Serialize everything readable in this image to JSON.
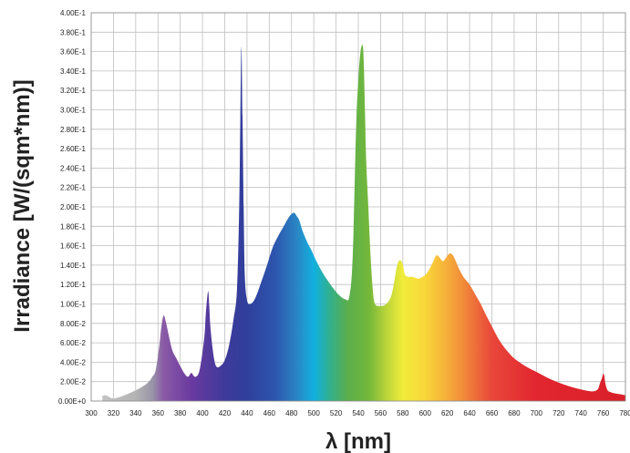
{
  "chart_data": {
    "type": "area",
    "title": "",
    "xlabel": "λ [nm]",
    "ylabel": "Irradiance [W/(sqm*nm)]",
    "xlim": [
      300,
      780
    ],
    "ylim": [
      0,
      0.4
    ],
    "grid": true,
    "x_ticks": [
      "300",
      "320",
      "340",
      "360",
      "380",
      "400",
      "420",
      "440",
      "460",
      "480",
      "500",
      "520",
      "540",
      "560",
      "580",
      "600",
      "620",
      "640",
      "660",
      "680",
      "700",
      "720",
      "740",
      "760",
      "780"
    ],
    "y_ticks": [
      "0.00E+0",
      "2.00E-2",
      "4.00E-2",
      "6.00E-2",
      "8.00E-2",
      "1.00E-1",
      "1.20E-1",
      "1.40E-1",
      "1.60E-1",
      "1.80E-1",
      "2.00E-1",
      "2.20E-1",
      "2.40E-1",
      "2.60E-1",
      "2.80E-1",
      "3.00E-1",
      "3.20E-1",
      "3.40E-1",
      "3.60E-1",
      "3.80E-1",
      "4.00E-1"
    ],
    "series": [
      {
        "x": [
          310,
          312,
          315,
          318,
          322,
          330,
          340,
          350,
          355,
          358,
          361,
          363,
          365,
          367,
          370,
          373,
          377,
          380,
          384,
          387,
          390,
          392,
          394,
          397,
          400,
          402,
          403,
          405,
          406,
          407,
          409,
          411,
          413,
          416,
          420,
          424,
          428,
          431,
          433,
          434,
          435,
          436,
          437,
          438,
          440,
          443,
          447,
          452,
          458,
          463,
          468,
          473,
          478,
          482,
          485,
          487,
          490,
          494,
          498,
          502,
          508,
          515,
          522,
          528,
          532,
          535,
          538,
          540,
          542,
          544,
          545,
          546,
          547,
          549,
          551,
          553,
          555,
          560,
          565,
          570,
          575,
          578,
          580,
          582,
          585,
          588,
          591,
          594,
          598,
          601,
          604,
          607,
          610,
          613,
          616,
          619,
          622,
          625,
          628,
          631,
          635,
          640,
          645,
          650,
          655,
          660,
          665,
          670,
          675,
          680,
          690,
          700,
          710,
          720,
          730,
          740,
          750,
          755,
          757,
          759,
          760,
          761,
          762,
          764,
          767,
          770,
          775,
          780
        ],
        "y": [
          0.005,
          0.006,
          0.005,
          0.003,
          0.003,
          0.006,
          0.011,
          0.018,
          0.025,
          0.032,
          0.055,
          0.076,
          0.088,
          0.082,
          0.066,
          0.052,
          0.043,
          0.036,
          0.028,
          0.025,
          0.029,
          0.026,
          0.025,
          0.03,
          0.05,
          0.07,
          0.09,
          0.113,
          0.1,
          0.078,
          0.055,
          0.04,
          0.035,
          0.036,
          0.042,
          0.058,
          0.085,
          0.115,
          0.2,
          0.29,
          0.365,
          0.29,
          0.2,
          0.13,
          0.104,
          0.1,
          0.105,
          0.12,
          0.14,
          0.158,
          0.17,
          0.18,
          0.19,
          0.194,
          0.19,
          0.186,
          0.175,
          0.164,
          0.155,
          0.145,
          0.132,
          0.12,
          0.11,
          0.105,
          0.108,
          0.15,
          0.28,
          0.33,
          0.36,
          0.366,
          0.345,
          0.3,
          0.25,
          0.2,
          0.15,
          0.115,
          0.1,
          0.098,
          0.1,
          0.11,
          0.14,
          0.145,
          0.14,
          0.13,
          0.128,
          0.128,
          0.127,
          0.126,
          0.128,
          0.131,
          0.136,
          0.143,
          0.15,
          0.148,
          0.144,
          0.148,
          0.152,
          0.15,
          0.143,
          0.135,
          0.127,
          0.12,
          0.11,
          0.1,
          0.088,
          0.077,
          0.066,
          0.057,
          0.05,
          0.044,
          0.036,
          0.03,
          0.024,
          0.019,
          0.015,
          0.012,
          0.01,
          0.012,
          0.018,
          0.024,
          0.028,
          0.026,
          0.018,
          0.011,
          0.009,
          0.008,
          0.007,
          0.006
        ]
      }
    ],
    "spectrum_colors": [
      {
        "nm": 300,
        "color": "#c9c9c9"
      },
      {
        "nm": 340,
        "color": "#b3b3b3"
      },
      {
        "nm": 355,
        "color": "#9a95a8"
      },
      {
        "nm": 365,
        "color": "#8a5aa6"
      },
      {
        "nm": 390,
        "color": "#6a3aa0"
      },
      {
        "nm": 420,
        "color": "#3e3a9a"
      },
      {
        "nm": 440,
        "color": "#2f3f9c"
      },
      {
        "nm": 465,
        "color": "#2d55ad"
      },
      {
        "nm": 485,
        "color": "#2a86c4"
      },
      {
        "nm": 500,
        "color": "#11b0e0"
      },
      {
        "nm": 515,
        "color": "#33b08a"
      },
      {
        "nm": 530,
        "color": "#5aae4c"
      },
      {
        "nm": 550,
        "color": "#75b83a"
      },
      {
        "nm": 565,
        "color": "#b9d43a"
      },
      {
        "nm": 580,
        "color": "#f1ec3a"
      },
      {
        "nm": 600,
        "color": "#f9d63a"
      },
      {
        "nm": 620,
        "color": "#f6ae3a"
      },
      {
        "nm": 640,
        "color": "#ef7c3a"
      },
      {
        "nm": 660,
        "color": "#e8473a"
      },
      {
        "nm": 700,
        "color": "#e2262f"
      },
      {
        "nm": 780,
        "color": "#d9202a"
      }
    ]
  }
}
